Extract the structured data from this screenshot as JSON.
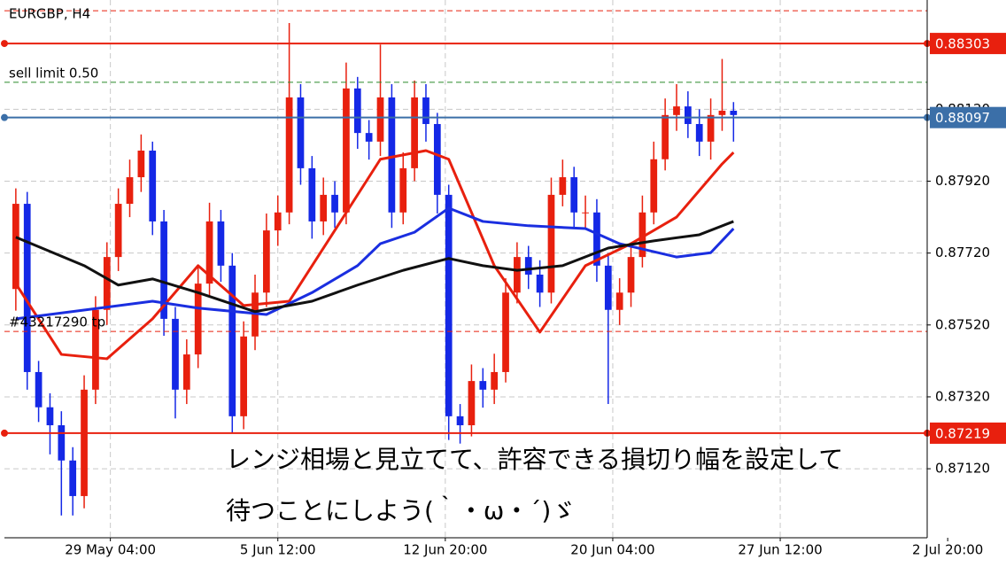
{
  "chart_data": {
    "type": "candlestick",
    "title": "EURGBP, H4",
    "up_color": "#e8200e",
    "down_color": "#1428e6",
    "ylim": [
      0.86928,
      0.88424
    ],
    "xlim": [
      -1,
      80
    ],
    "yticks": [
      {
        "value": 0.8712,
        "label": "0.87120"
      },
      {
        "value": 0.8732,
        "label": "0.87320"
      },
      {
        "value": 0.8752,
        "label": "0.87520"
      },
      {
        "value": 0.8772,
        "label": "0.87720"
      },
      {
        "value": 0.8792,
        "label": "0.87920"
      },
      {
        "value": 0.8812,
        "label": "0.88120"
      }
    ],
    "xticks": [
      {
        "value": 8.3,
        "label": "29 May 04:00"
      },
      {
        "value": 23,
        "label": "5 Jun 12:00"
      },
      {
        "value": 37.7,
        "label": "12 Jun 20:00"
      },
      {
        "value": 52.4,
        "label": "20 Jun 04:00"
      },
      {
        "value": 67.1,
        "label": "27 Jun 12:00"
      },
      {
        "value": 81.8,
        "label": "2 Jul 20:00"
      }
    ],
    "grid": true,
    "ohlc": [
      [
        0.8762,
        0.879,
        0.8756,
        0.87857
      ],
      [
        0.87857,
        0.8789,
        0.8734,
        0.87389
      ],
      [
        0.87389,
        0.8742,
        0.8725,
        0.87291
      ],
      [
        0.87291,
        0.8733,
        0.8716,
        0.87241
      ],
      [
        0.87241,
        0.8728,
        0.8699,
        0.87143
      ],
      [
        0.87143,
        0.8718,
        0.8699,
        0.87044
      ],
      [
        0.87044,
        0.8738,
        0.8701,
        0.8734
      ],
      [
        0.8734,
        0.876,
        0.873,
        0.87562
      ],
      [
        0.87562,
        0.8775,
        0.8752,
        0.87709
      ],
      [
        0.87709,
        0.879,
        0.8767,
        0.87857
      ],
      [
        0.87857,
        0.8798,
        0.8782,
        0.87931
      ],
      [
        0.87931,
        0.8805,
        0.8789,
        0.88005
      ],
      [
        0.88005,
        0.8803,
        0.8777,
        0.87808
      ],
      [
        0.87808,
        0.8784,
        0.8749,
        0.87537
      ],
      [
        0.87537,
        0.8757,
        0.8726,
        0.8734
      ],
      [
        0.8734,
        0.8748,
        0.873,
        0.87438
      ],
      [
        0.87438,
        0.8768,
        0.874,
        0.87635
      ],
      [
        0.87635,
        0.8786,
        0.876,
        0.87808
      ],
      [
        0.87808,
        0.8784,
        0.8764,
        0.87685
      ],
      [
        0.87685,
        0.8772,
        0.8722,
        0.87266
      ],
      [
        0.87266,
        0.8753,
        0.8723,
        0.87488
      ],
      [
        0.87488,
        0.8766,
        0.8745,
        0.8761
      ],
      [
        0.8761,
        0.8783,
        0.8757,
        0.87783
      ],
      [
        0.87783,
        0.8788,
        0.8774,
        0.87833
      ],
      [
        0.87833,
        0.8836,
        0.878,
        0.88153
      ],
      [
        0.88153,
        0.8819,
        0.8791,
        0.87956
      ],
      [
        0.87956,
        0.8799,
        0.8776,
        0.87808
      ],
      [
        0.87808,
        0.8793,
        0.8777,
        0.87882
      ],
      [
        0.87882,
        0.8792,
        0.8779,
        0.87833
      ],
      [
        0.87833,
        0.8825,
        0.878,
        0.88178
      ],
      [
        0.88178,
        0.8821,
        0.8801,
        0.88054
      ],
      [
        0.88054,
        0.8809,
        0.8798,
        0.8803
      ],
      [
        0.8803,
        0.883,
        0.8799,
        0.88153
      ],
      [
        0.88153,
        0.8819,
        0.8779,
        0.87833
      ],
      [
        0.87833,
        0.88,
        0.878,
        0.87956
      ],
      [
        0.87956,
        0.882,
        0.8792,
        0.88153
      ],
      [
        0.88153,
        0.8819,
        0.8803,
        0.88079
      ],
      [
        0.88079,
        0.8811,
        0.8783,
        0.87882
      ],
      [
        0.87882,
        0.8791,
        0.872,
        0.87266
      ],
      [
        0.87266,
        0.873,
        0.8719,
        0.87241
      ],
      [
        0.87241,
        0.8741,
        0.8721,
        0.87364
      ],
      [
        0.87364,
        0.874,
        0.8729,
        0.8734
      ],
      [
        0.8734,
        0.8744,
        0.873,
        0.87389
      ],
      [
        0.87389,
        0.8765,
        0.8736,
        0.8761
      ],
      [
        0.8761,
        0.8775,
        0.8758,
        0.87709
      ],
      [
        0.87709,
        0.8774,
        0.8762,
        0.8766
      ],
      [
        0.8766,
        0.877,
        0.8757,
        0.8761
      ],
      [
        0.8761,
        0.8793,
        0.8758,
        0.87882
      ],
      [
        0.87882,
        0.8798,
        0.8785,
        0.87931
      ],
      [
        0.87931,
        0.8796,
        0.8779,
        0.87833
      ],
      [
        0.87833,
        0.8788,
        0.8779,
        0.87833
      ],
      [
        0.87833,
        0.8787,
        0.8764,
        0.87685
      ],
      [
        0.87685,
        0.8772,
        0.873,
        0.87562
      ],
      [
        0.87562,
        0.8765,
        0.8752,
        0.8761
      ],
      [
        0.8761,
        0.8775,
        0.8757,
        0.87709
      ],
      [
        0.87709,
        0.8788,
        0.8768,
        0.87833
      ],
      [
        0.87833,
        0.8803,
        0.878,
        0.87981
      ],
      [
        0.87981,
        0.8815,
        0.8795,
        0.88104
      ],
      [
        0.88104,
        0.8819,
        0.8806,
        0.88128
      ],
      [
        0.88128,
        0.8817,
        0.8804,
        0.88079
      ],
      [
        0.88079,
        0.8812,
        0.8799,
        0.8803
      ],
      [
        0.8803,
        0.8815,
        0.8798,
        0.88104
      ],
      [
        0.88104,
        0.8826,
        0.8806,
        0.88116
      ],
      [
        0.88116,
        0.8814,
        0.8803,
        0.88104
      ]
    ],
    "lines": [
      {
        "color": "#e8200e",
        "x": [
          0,
          4,
          8,
          12,
          16,
          20,
          24,
          28,
          32,
          36,
          38,
          42,
          46,
          50,
          54,
          58,
          62,
          63
        ],
        "values": [
          0.87635,
          0.87438,
          0.87426,
          0.87537,
          0.87685,
          0.87574,
          0.87586,
          0.87783,
          0.87981,
          0.88005,
          0.87981,
          0.87685,
          0.875,
          0.87685,
          0.87746,
          0.8782,
          0.87968,
          0.88
        ]
      },
      {
        "color": "#1a2ee0",
        "x": [
          0,
          12,
          16,
          22,
          26,
          30,
          32,
          35,
          38,
          41,
          45,
          50,
          53,
          58,
          61,
          63
        ],
        "values": [
          0.87537,
          0.87586,
          0.87567,
          0.87549,
          0.8761,
          0.87685,
          0.87746,
          0.87778,
          0.87845,
          0.87808,
          0.87796,
          0.87788,
          0.87746,
          0.87709,
          0.87721,
          0.87788
        ]
      },
      {
        "color": "#111111",
        "x": [
          0,
          6,
          9,
          12,
          16,
          21,
          26,
          30,
          34,
          38,
          41,
          44,
          48,
          52,
          56,
          60,
          63
        ],
        "values": [
          0.87764,
          0.87685,
          0.87631,
          0.87648,
          0.8761,
          0.87557,
          0.87586,
          0.87631,
          0.87672,
          0.87705,
          0.87685,
          0.87672,
          0.87685,
          0.87734,
          0.87754,
          0.87771,
          0.87808
        ]
      }
    ],
    "levels": [
      {
        "value": 0.88394,
        "color": "#e8200e",
        "dashed": true
      },
      {
        "value": 0.88303,
        "color": "#e8200e",
        "dashed": false,
        "box": true
      },
      {
        "value": 0.88195,
        "color": "#2a8a2a",
        "dashed": true,
        "label": "sell limit 0.50"
      },
      {
        "value": 0.88097,
        "color": "#3b6fa8",
        "dashed": false,
        "box": true
      },
      {
        "value": 0.87502,
        "color": "#e8200e",
        "dashed": true,
        "label": "#43217290 tp"
      },
      {
        "value": 0.87219,
        "color": "#e8200e",
        "dashed": false,
        "box": true
      }
    ],
    "annotation": [
      "レンジ相場と見立てて、許容できる損切り幅を設定して",
      "待つことにしよう(｀・ω・´)ゞ"
    ]
  }
}
